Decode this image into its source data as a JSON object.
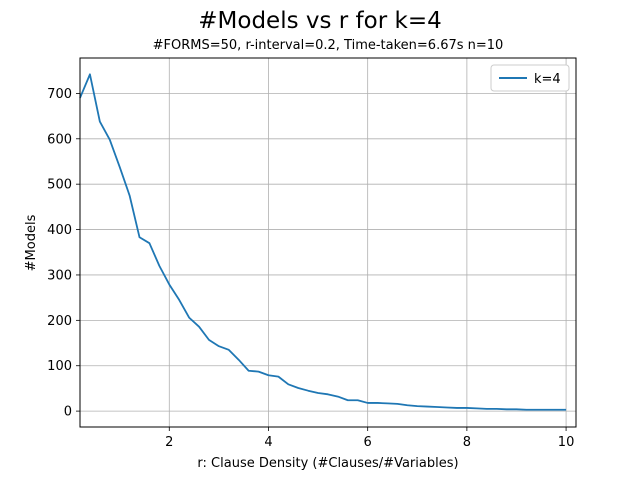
{
  "chart_data": {
    "type": "line",
    "title": "#Models vs r for k=4",
    "subtitle": "#FORMS=50, r-interval=0.2, Time-taken=6.67s n=10",
    "xlabel": "r: Clause Density (#Clauses/#Variables)",
    "ylabel": "#Models",
    "xlim": [
      0.2,
      10.2
    ],
    "ylim": [
      -35,
      778
    ],
    "x_ticks": [
      2,
      4,
      6,
      8,
      10
    ],
    "y_ticks": [
      0,
      100,
      200,
      300,
      400,
      500,
      600,
      700
    ],
    "grid": true,
    "legend_position": "top-right",
    "series": [
      {
        "name": "k=4",
        "color": "#1f77b4",
        "x": [
          0.2,
          0.4,
          0.6,
          0.8,
          1.0,
          1.2,
          1.4,
          1.6,
          1.8,
          2.0,
          2.2,
          2.4,
          2.6,
          2.8,
          3.0,
          3.2,
          3.4,
          3.6,
          3.8,
          4.0,
          4.2,
          4.4,
          4.6,
          4.8,
          5.0,
          5.2,
          5.4,
          5.6,
          5.8,
          6.0,
          6.2,
          6.4,
          6.6,
          6.8,
          7.0,
          7.2,
          7.4,
          7.6,
          7.8,
          8.0,
          8.2,
          8.4,
          8.6,
          8.8,
          9.0,
          9.2,
          9.4,
          9.6,
          9.8,
          10.0
        ],
        "y": [
          690,
          742,
          638,
          598,
          538,
          475,
          383,
          370,
          320,
          279,
          245,
          206,
          186,
          157,
          143,
          135,
          113,
          89,
          87,
          79,
          76,
          59,
          51,
          45,
          40,
          37,
          32,
          24,
          24,
          18,
          18,
          17,
          16,
          13,
          11,
          10,
          9,
          8,
          7,
          7,
          6,
          5,
          5,
          4,
          4,
          3,
          3,
          3,
          3,
          3
        ]
      }
    ]
  }
}
